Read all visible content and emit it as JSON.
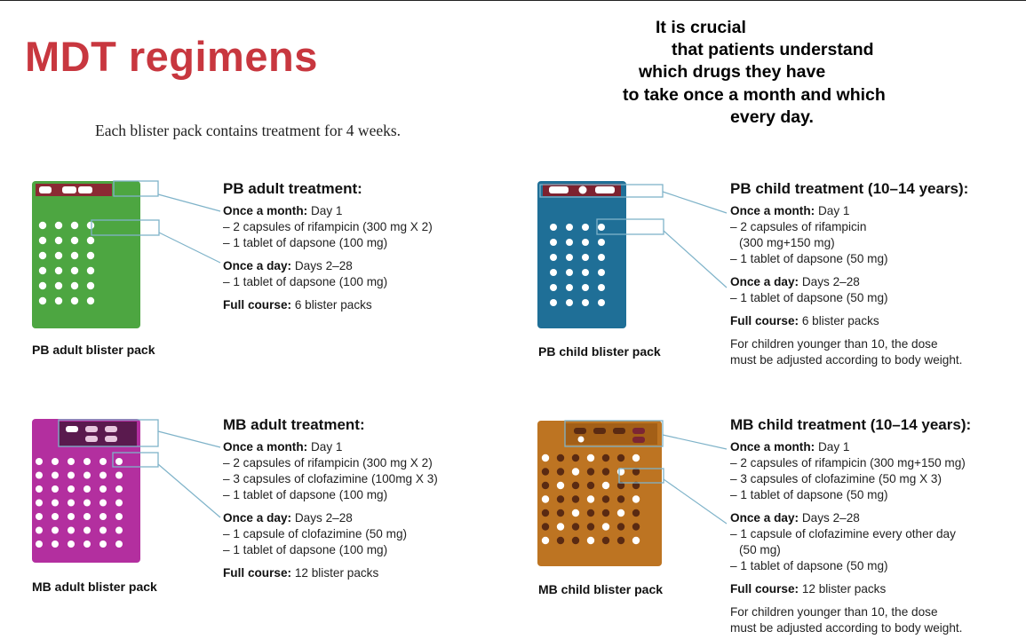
{
  "page": {
    "title": "MDT regimens",
    "subtitle": "Each blister pack contains treatment for 4 weeks.",
    "note_lines": [
      "It is crucial",
      "that patients understand",
      "which drugs they have",
      "to take once a month and which",
      "every day."
    ]
  },
  "colors": {
    "title": "#c8373f",
    "pb_adult_pack": "#4da641",
    "pb_child_pack": "#1f6f97",
    "mb_adult_pack": "#b32f9f",
    "mb_child_pack": "#bd7422",
    "callout": "#7fb3c9"
  },
  "sections": {
    "pb_adult": {
      "pack_label": "PB adult blister pack",
      "heading": "PB adult treatment:",
      "monthly_label": "Once a month:",
      "monthly_value": "Day 1",
      "monthly_items": [
        "– 2 capsules of rifampicin (300 mg X 2)",
        "– 1 tablet of dapsone (100 mg)"
      ],
      "daily_label": "Once a day:",
      "daily_value": "Days 2–28",
      "daily_items": [
        "– 1 tablet of dapsone (100 mg)"
      ],
      "course_label": "Full course:",
      "course_value": "6 blister packs"
    },
    "pb_child": {
      "pack_label": "PB child blister pack",
      "heading": "PB child treatment (10–14 years):",
      "monthly_label": "Once a month:",
      "monthly_value": "Day 1",
      "monthly_items": [
        "– 2 capsules of rifampicin",
        "  (300 mg+150 mg)",
        "– 1 tablet of dapsone (50 mg)"
      ],
      "daily_label": "Once a day:",
      "daily_value": "Days 2–28",
      "daily_items": [
        "– 1 tablet of dapsone (50 mg)"
      ],
      "course_label": "Full course:",
      "course_value": "6 blister packs",
      "note": [
        "For children younger than 10, the dose",
        "must be adjusted according to body weight."
      ]
    },
    "mb_adult": {
      "pack_label": "MB adult blister pack",
      "heading": "MB adult treatment:",
      "monthly_label": "Once a month:",
      "monthly_value": "Day 1",
      "monthly_items": [
        "– 2 capsules of rifampicin (300 mg X 2)",
        "– 3 capsules of clofazimine (100mg X 3)",
        "– 1 tablet of dapsone (100 mg)"
      ],
      "daily_label": "Once a day:",
      "daily_value": "Days 2–28",
      "daily_items": [
        "– 1 capsule of clofazimine (50 mg)",
        "– 1 tablet of dapsone (100 mg)"
      ],
      "course_label": "Full course:",
      "course_value": "12 blister packs"
    },
    "mb_child": {
      "pack_label": "MB child blister pack",
      "heading": "MB child treatment (10–14 years):",
      "monthly_label": "Once a month:",
      "monthly_value": "Day 1",
      "monthly_items": [
        "– 2 capsules of rifampicin (300 mg+150 mg)",
        "– 3 capsules of clofazimine (50 mg X 3)",
        "– 1 tablet of dapsone (50 mg)"
      ],
      "daily_label": "Once a day:",
      "daily_value": "Days 2–28",
      "daily_items": [
        "– 1 capsule of clofazimine every other day",
        "  (50 mg)",
        "– 1 tablet of dapsone (50 mg)"
      ],
      "course_label": "Full course:",
      "course_value": "12 blister packs",
      "note": [
        "For children younger than 10, the dose",
        "must be adjusted according to body weight."
      ]
    }
  }
}
